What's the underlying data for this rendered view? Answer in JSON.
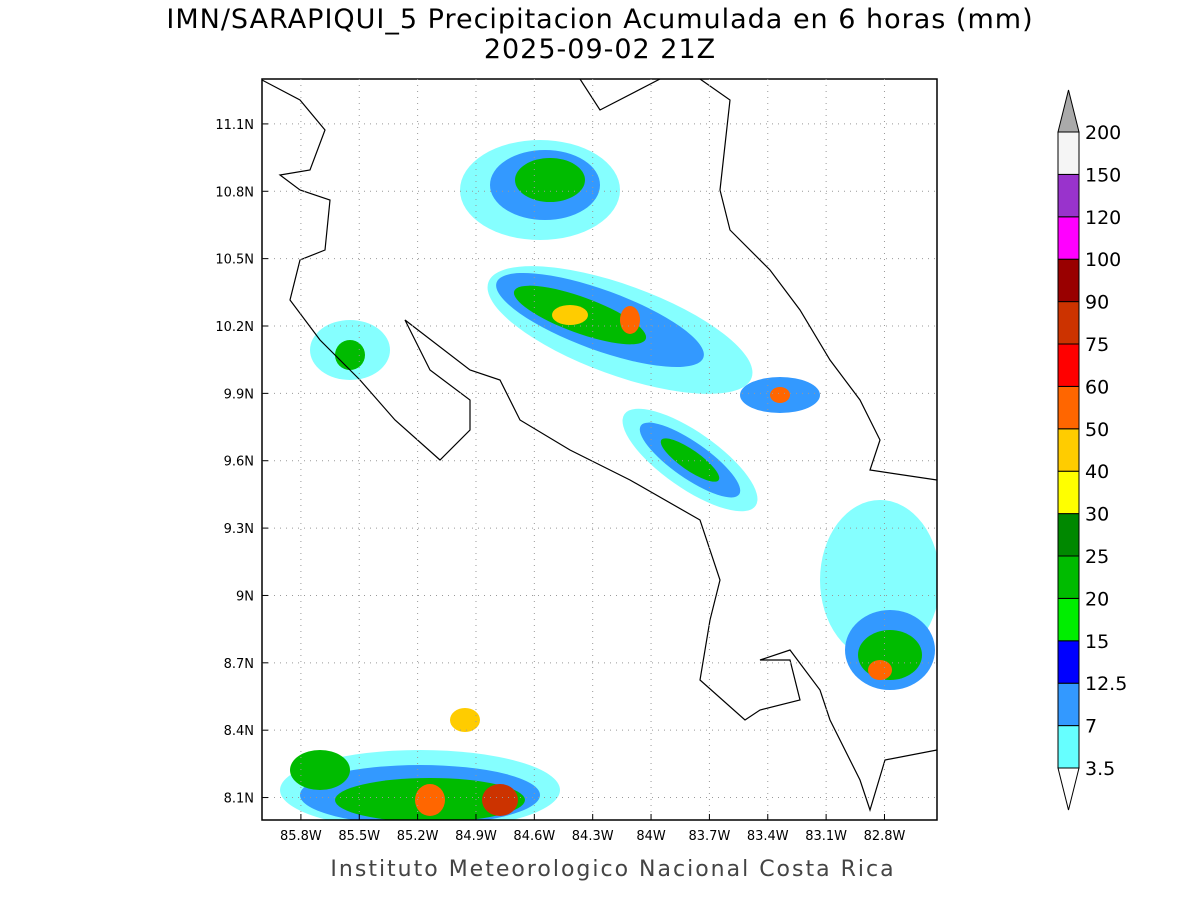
{
  "title": "IMN/SARAPIQUI_5 Precipitacion Acumulada en 6 horas (mm)",
  "subtitle": "2025-09-02 21Z",
  "footer": "Instituto Meteorologico Nacional Costa Rica",
  "map": {
    "xlim": [
      -86.0,
      -82.53
    ],
    "ylim": [
      8.0,
      11.3
    ],
    "xticks": [
      {
        "value": -85.8,
        "label": "85.8W"
      },
      {
        "value": -85.5,
        "label": "85.5W"
      },
      {
        "value": -85.2,
        "label": "85.2W"
      },
      {
        "value": -84.9,
        "label": "84.9W"
      },
      {
        "value": -84.6,
        "label": "84.6W"
      },
      {
        "value": -84.3,
        "label": "84.3W"
      },
      {
        "value": -84.0,
        "label": "84W"
      },
      {
        "value": -83.7,
        "label": "83.7W"
      },
      {
        "value": -83.4,
        "label": "83.4W"
      },
      {
        "value": -83.1,
        "label": "83.1W"
      },
      {
        "value": -82.8,
        "label": "82.8W"
      }
    ],
    "yticks": [
      {
        "value": 8.1,
        "label": "8.1N"
      },
      {
        "value": 8.4,
        "label": "8.4N"
      },
      {
        "value": 8.7,
        "label": "8.7N"
      },
      {
        "value": 9.0,
        "label": "9N"
      },
      {
        "value": 9.3,
        "label": "9.3N"
      },
      {
        "value": 9.6,
        "label": "9.6N"
      },
      {
        "value": 9.9,
        "label": "9.9N"
      },
      {
        "value": 10.2,
        "label": "10.2N"
      },
      {
        "value": 10.5,
        "label": "10.5N"
      },
      {
        "value": 10.8,
        "label": "10.8N"
      },
      {
        "value": 11.1,
        "label": "11.1N"
      }
    ],
    "grid": true
  },
  "colorbar": {
    "levels": [
      3.5,
      7,
      12.5,
      15,
      20,
      25,
      30,
      40,
      50,
      60,
      75,
      90,
      100,
      120,
      150,
      200
    ],
    "colors": [
      "#66ffff",
      "#3399ff",
      "#0000ff",
      "#00ee00",
      "#00bb00",
      "#008800",
      "#ffff00",
      "#ffcc00",
      "#ff6600",
      "#ff0000",
      "#cc3300",
      "#990000",
      "#ff00ff",
      "#9933cc",
      "#f5f5f5"
    ],
    "under_color": "#ffffff",
    "over_color": "#aaaaaa"
  }
}
